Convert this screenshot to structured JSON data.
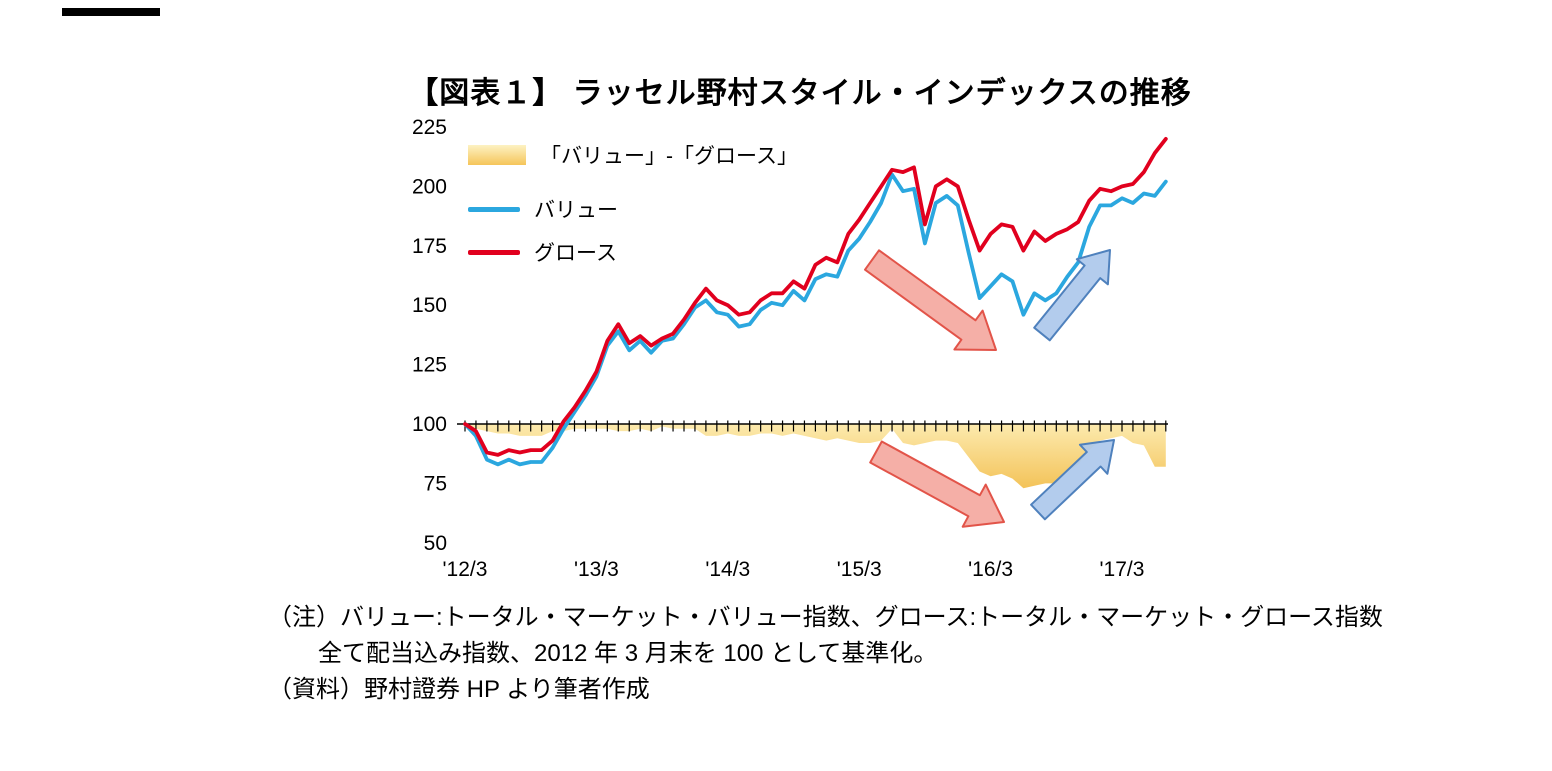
{
  "chart_data": {
    "type": "line",
    "title": "【図表１】 ラッセル野村スタイル・インデックスの推移",
    "x_unit": "month",
    "x_start": "2012/3",
    "x_end": "2017/7",
    "x_tick_labels": [
      "'12/3",
      "'13/3",
      "'14/3",
      "'15/3",
      "'16/3",
      "'17/3"
    ],
    "x_tick_month_indices": [
      0,
      12,
      24,
      36,
      48,
      60
    ],
    "y_ticks": [
      50,
      75,
      100,
      125,
      150,
      175,
      200,
      225
    ],
    "ylim": [
      50,
      225
    ],
    "baseline": 100,
    "grid": false,
    "legend_position": "upper-left",
    "series": [
      {
        "name": "バリュー",
        "type": "line",
        "color": "#2BA7DF",
        "values": [
          100,
          95,
          85,
          83,
          85,
          83,
          84,
          84,
          90,
          98,
          105,
          112,
          120,
          133,
          139,
          131,
          135,
          130,
          135,
          136,
          142,
          149,
          152,
          147,
          146,
          141,
          142,
          148,
          151,
          150,
          156,
          152,
          161,
          163,
          162,
          173,
          178,
          185,
          193,
          205,
          198,
          199,
          176,
          193,
          196,
          192,
          172,
          153,
          158,
          163,
          160,
          146,
          155,
          152,
          155,
          162,
          168,
          183,
          192,
          192,
          195,
          193,
          197,
          196,
          202
        ]
      },
      {
        "name": "グロース",
        "type": "line",
        "color": "#E1001E",
        "values": [
          100,
          97,
          88,
          87,
          89,
          88,
          89,
          89,
          93,
          101,
          107,
          114,
          122,
          135,
          142,
          134,
          137,
          133,
          136,
          138,
          144,
          151,
          157,
          152,
          150,
          146,
          147,
          152,
          155,
          155,
          160,
          157,
          167,
          170,
          168,
          180,
          186,
          193,
          200,
          207,
          206,
          208,
          184,
          200,
          203,
          200,
          186,
          173,
          180,
          184,
          183,
          173,
          181,
          177,
          180,
          182,
          185,
          194,
          199,
          198,
          200,
          201,
          206,
          214,
          220
        ]
      },
      {
        "name": "「バリュー」-「グロース」",
        "type": "area",
        "note": "plotted as 100 + (バリュー − グロース)",
        "color_top": "#FCEAAE",
        "color_bottom": "#F2BD4C",
        "values": [
          100,
          98,
          97,
          96,
          96,
          95,
          95,
          95,
          97,
          97,
          98,
          98,
          98,
          98,
          97,
          97,
          98,
          97,
          99,
          98,
          98,
          98,
          95,
          95,
          96,
          95,
          95,
          96,
          96,
          95,
          96,
          95,
          94,
          93,
          94,
          93,
          92,
          92,
          93,
          98,
          92,
          91,
          92,
          93,
          93,
          92,
          86,
          80,
          78,
          79,
          77,
          73,
          74,
          75,
          75,
          80,
          83,
          89,
          93,
          94,
          95,
          92,
          91,
          82,
          82
        ]
      }
    ],
    "annotations": [
      {
        "name": "decline-arrow-upper",
        "type": "block-arrow",
        "from": [
          872,
          260
        ],
        "to": [
          996,
          350
        ],
        "body_half_width": 12,
        "head_half_width": 24,
        "head_length": 34,
        "fill": "#F4A8A0",
        "stroke": "#E25449"
      },
      {
        "name": "recovery-arrow-upper",
        "type": "block-arrow",
        "from": [
          1042,
          334
        ],
        "to": [
          1110,
          250
        ],
        "body_half_width": 10,
        "head_half_width": 20,
        "head_length": 28,
        "fill": "#ACC8EC",
        "stroke": "#4F81BD"
      },
      {
        "name": "decline-arrow-lower",
        "type": "block-arrow",
        "from": [
          876,
          452
        ],
        "to": [
          1004,
          522
        ],
        "body_half_width": 12,
        "head_half_width": 24,
        "head_length": 34,
        "fill": "#F4A8A0",
        "stroke": "#E25449"
      },
      {
        "name": "recovery-arrow-lower",
        "type": "block-arrow",
        "from": [
          1038,
          512
        ],
        "to": [
          1114,
          440
        ],
        "body_half_width": 10,
        "head_half_width": 20,
        "head_length": 28,
        "fill": "#ACC8EC",
        "stroke": "#4F81BD"
      }
    ]
  },
  "legend": {
    "items": [
      {
        "label": "「バリュー」-「グロース」"
      },
      {
        "label": "バリュー"
      },
      {
        "label": "グロース"
      }
    ]
  },
  "notes": {
    "line1": "（注）バリュー:トータル・マーケット・バリュー指数、グロース:トータル・マーケット・グロース指数",
    "line2": "全て配当込み指数、2012 年 3 月末を 100 として基準化。",
    "line3": "（資料）野村證券 HP より筆者作成"
  }
}
